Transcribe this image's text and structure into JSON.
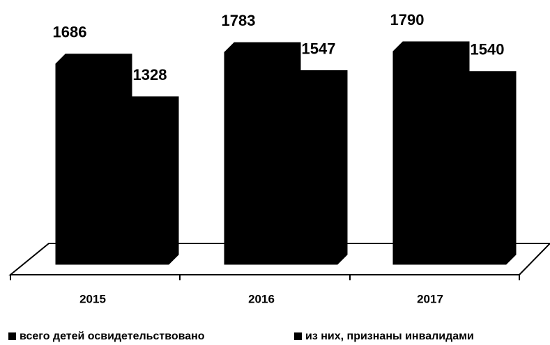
{
  "chart_data": {
    "type": "bar",
    "categories": [
      "2015",
      "2016",
      "2017"
    ],
    "series": [
      {
        "name": "всего детей освидетельствовано",
        "color": "#000000",
        "values": [
          1686,
          1783,
          1790
        ]
      },
      {
        "name": "из них, признаны инвалидами",
        "color": "#000000",
        "values": [
          1328,
          1547,
          1540
        ]
      }
    ]
  }
}
